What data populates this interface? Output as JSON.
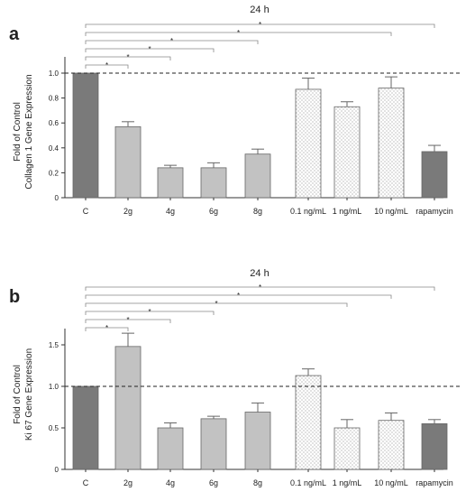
{
  "chart_data": [
    {
      "type": "bar",
      "panel_label": "a",
      "header": "24 h",
      "ylabel_line1": "Fold of Control",
      "ylabel_line2": "Collagen 1 Gene Expression",
      "categories": [
        "C",
        "2g",
        "4g",
        "6g",
        "8g",
        "0.1 ng/mL",
        "1 ng/mL",
        "10 ng/mL",
        "rapamycin"
      ],
      "values": [
        1.0,
        0.57,
        0.24,
        0.24,
        0.35,
        0.87,
        0.73,
        0.88,
        0.37
      ],
      "errors": [
        0.0,
        0.04,
        0.02,
        0.04,
        0.04,
        0.09,
        0.04,
        0.09,
        0.05
      ],
      "ylim": [
        0,
        1.0
      ],
      "yticks": [
        "0",
        "0.2",
        "0.4",
        "0.6",
        "0.8",
        "1.0"
      ],
      "reference_line": 1.0,
      "bar_styles": [
        "dark",
        "light",
        "light",
        "light",
        "light",
        "hatched",
        "hatched",
        "hatched",
        "dark"
      ],
      "significance": [
        {
          "from": 0,
          "to": 8,
          "label": "*"
        },
        {
          "from": 0,
          "to": 7,
          "label": "*"
        },
        {
          "from": 0,
          "to": 4,
          "label": "*"
        },
        {
          "from": 0,
          "to": 3,
          "label": "*"
        },
        {
          "from": 0,
          "to": 2,
          "label": "*"
        },
        {
          "from": 0,
          "to": 1,
          "label": "*"
        }
      ]
    },
    {
      "type": "bar",
      "panel_label": "b",
      "header": "24 h",
      "ylabel_line1": "Fold of Control",
      "ylabel_line2": "Ki 67  Gene Expression",
      "categories": [
        "C",
        "2g",
        "4g",
        "6g",
        "8g",
        "0.1 ng/mL",
        "1 ng/mL",
        "10 ng/mL",
        "rapamycin"
      ],
      "values": [
        1.0,
        1.48,
        0.5,
        0.61,
        0.69,
        1.13,
        0.5,
        0.59,
        0.55
      ],
      "errors": [
        0.0,
        0.16,
        0.06,
        0.03,
        0.11,
        0.08,
        0.1,
        0.09,
        0.05
      ],
      "ylim": [
        0,
        1.5
      ],
      "yticks": [
        "0",
        "0.5",
        "1.0",
        "1.5"
      ],
      "reference_line": 1.0,
      "bar_styles": [
        "dark",
        "light",
        "light",
        "light",
        "light",
        "hatched",
        "hatched",
        "hatched",
        "dark"
      ],
      "significance": [
        {
          "from": 0,
          "to": 8,
          "label": "*"
        },
        {
          "from": 0,
          "to": 7,
          "label": "*"
        },
        {
          "from": 0,
          "to": 6,
          "label": "*"
        },
        {
          "from": 0,
          "to": 3,
          "label": "*"
        },
        {
          "from": 0,
          "to": 2,
          "label": "*"
        },
        {
          "from": 0,
          "to": 1,
          "label": "*"
        }
      ]
    }
  ],
  "colors": {
    "dark_bar": "#7a7a7a",
    "light_bar": "#c2c2c2",
    "hatched_bar": "#ffffff",
    "hatch_dot": "#9a9a9a",
    "bar_edge": "#666666",
    "bracket": "#888888",
    "axis": "#333333"
  }
}
